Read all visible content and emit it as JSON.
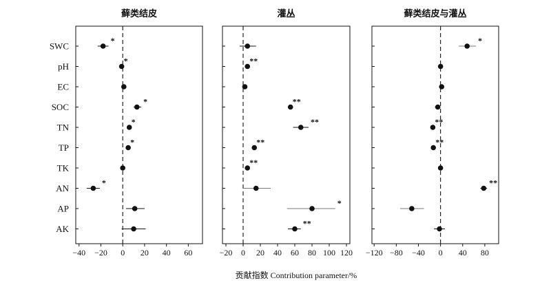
{
  "chart_data": {
    "type": "scatter",
    "subtype": "forest-plot",
    "categories": [
      "SWC",
      "pH",
      "EC",
      "SOC",
      "TN",
      "TP",
      "TK",
      "AN",
      "AP",
      "AK"
    ],
    "xlabel": "贡献指数 Contribution parameter/%",
    "reference_line_x": 0,
    "panels": [
      {
        "title": "藓类结皮",
        "xlim": [
          -43,
          73
        ],
        "xticks": [
          -40,
          -20,
          0,
          20,
          40,
          60
        ],
        "points": [
          {
            "category": "SWC",
            "value": -18,
            "ci": [
              -23,
              -13
            ],
            "sig": "*"
          },
          {
            "category": "pH",
            "value": -1,
            "ci": [
              -1,
              -1
            ],
            "sig": "*"
          },
          {
            "category": "EC",
            "value": 1,
            "ci": [
              1,
              1
            ],
            "sig": ""
          },
          {
            "category": "SOC",
            "value": 13,
            "ci": [
              10,
              17
            ],
            "sig": "*"
          },
          {
            "category": "TN",
            "value": 6,
            "ci": [
              6,
              6
            ],
            "sig": "*"
          },
          {
            "category": "TP",
            "value": 5,
            "ci": [
              5,
              5
            ],
            "sig": "*"
          },
          {
            "category": "TK",
            "value": 0,
            "ci": [
              0,
              0
            ],
            "sig": ""
          },
          {
            "category": "AN",
            "value": -27,
            "ci": [
              -33,
              -21
            ],
            "sig": "*"
          },
          {
            "category": "AP",
            "value": 11,
            "ci": [
              3,
              20
            ],
            "sig": ""
          },
          {
            "category": "AK",
            "value": 10,
            "ci": [
              -1,
              21
            ],
            "sig": ""
          }
        ]
      },
      {
        "title": "灌丛",
        "xlim": [
          -24,
          124
        ],
        "xticks": [
          -20,
          0,
          20,
          40,
          60,
          80,
          100,
          120
        ],
        "points": [
          {
            "category": "SWC",
            "value": 5,
            "ci": [
              -4,
              15
            ],
            "sig": ""
          },
          {
            "category": "pH",
            "value": 5,
            "ci": [
              5,
              5
            ],
            "sig": "**"
          },
          {
            "category": "EC",
            "value": 2,
            "ci": [
              2,
              2
            ],
            "sig": ""
          },
          {
            "category": "SOC",
            "value": 55,
            "ci": [
              55,
              55
            ],
            "sig": "**"
          },
          {
            "category": "TN",
            "value": 67,
            "ci": [
              58,
              76
            ],
            "sig": "**"
          },
          {
            "category": "TP",
            "value": 13,
            "ci": [
              13,
              13
            ],
            "sig": "**"
          },
          {
            "category": "TK",
            "value": 5,
            "ci": [
              5,
              5
            ],
            "sig": "**"
          },
          {
            "category": "AN",
            "value": 15,
            "ci": [
              -1,
              32
            ],
            "sig": ""
          },
          {
            "category": "AP",
            "value": 80,
            "ci": [
              51,
              107
            ],
            "sig": "*"
          },
          {
            "category": "AK",
            "value": 60,
            "ci": [
              52,
              67
            ],
            "sig": "**"
          }
        ]
      },
      {
        "title": "藓类结皮与灌丛",
        "xlim": [
          -124,
          105
        ],
        "xticks": [
          -120,
          -80,
          -40,
          0,
          40,
          80
        ],
        "points": [
          {
            "category": "SWC",
            "value": 48,
            "ci": [
              33,
              64
            ],
            "sig": "*"
          },
          {
            "category": "pH",
            "value": 0,
            "ci": [
              0,
              0
            ],
            "sig": ""
          },
          {
            "category": "EC",
            "value": 2,
            "ci": [
              2,
              2
            ],
            "sig": ""
          },
          {
            "category": "SOC",
            "value": -5,
            "ci": [
              -10,
              -2
            ],
            "sig": ""
          },
          {
            "category": "TN",
            "value": -14,
            "ci": [
              -14,
              -14
            ],
            "sig": "**"
          },
          {
            "category": "TP",
            "value": -13,
            "ci": [
              -13,
              -13
            ],
            "sig": "**"
          },
          {
            "category": "TK",
            "value": 0,
            "ci": [
              0,
              0
            ],
            "sig": ""
          },
          {
            "category": "AN",
            "value": 78,
            "ci": [
              72,
              84
            ],
            "sig": "**"
          },
          {
            "category": "AP",
            "value": -52,
            "ci": [
              -73,
              -30
            ],
            "sig": ""
          },
          {
            "category": "AK",
            "value": -2,
            "ci": [
              -12,
              8
            ],
            "sig": ""
          }
        ]
      }
    ]
  }
}
